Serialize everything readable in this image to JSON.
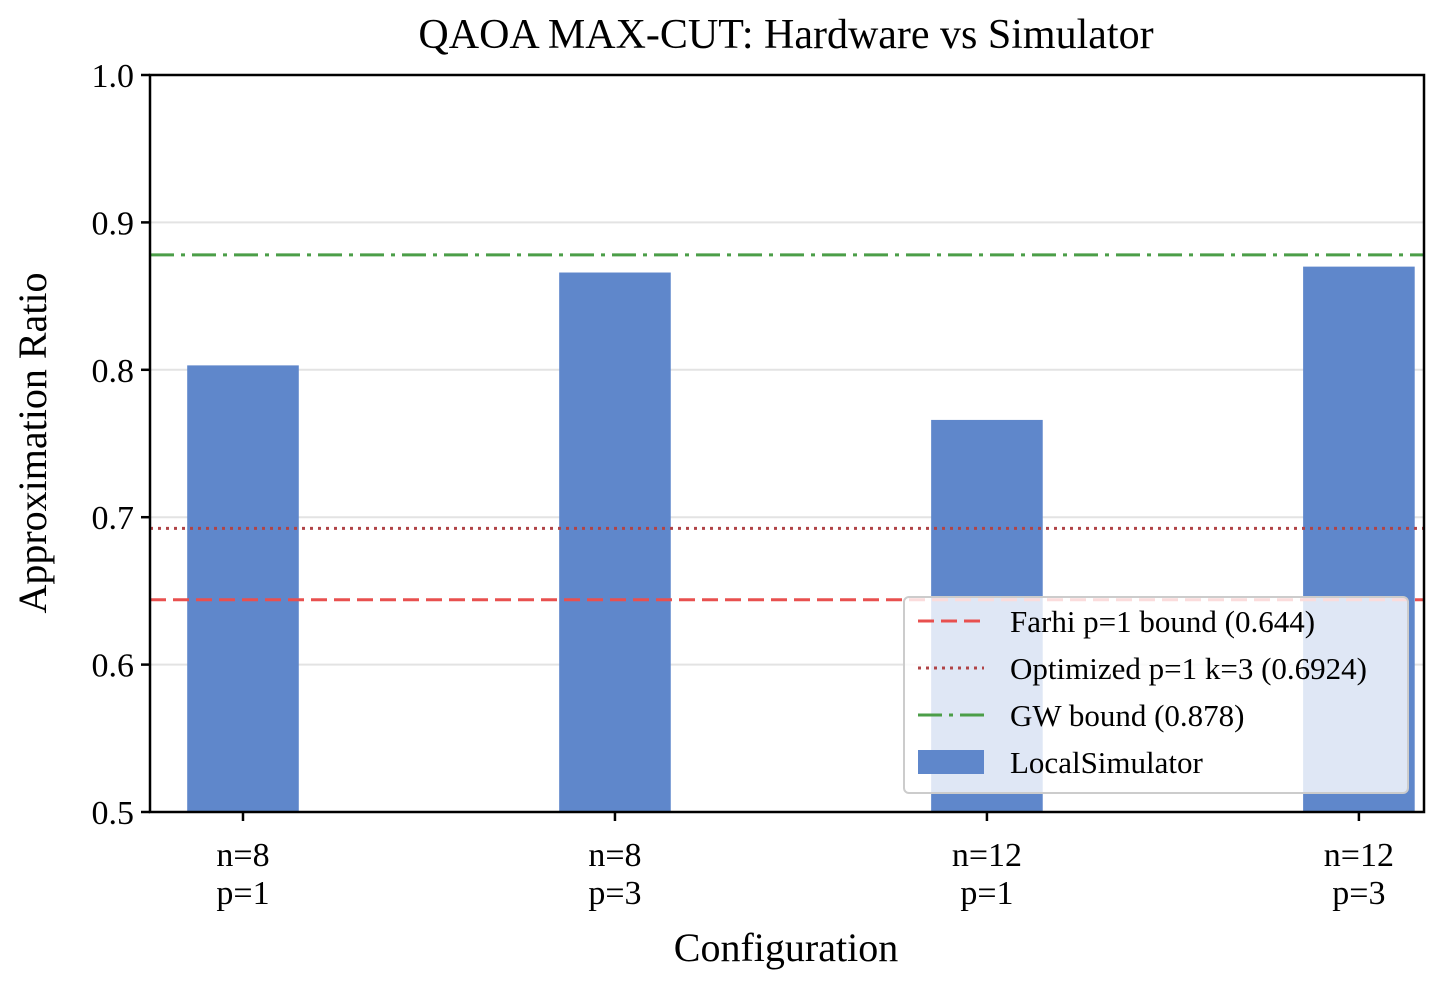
{
  "chart_data": {
    "type": "bar",
    "title": "QAOA MAX-CUT: Hardware vs Simulator",
    "xlabel": "Configuration",
    "ylabel": "Approximation Ratio",
    "ylim": [
      0.5,
      1.0
    ],
    "yticks": [
      "0.5",
      "0.6",
      "0.7",
      "0.8",
      "0.9",
      "1.0"
    ],
    "categories": [
      {
        "line1": "n=8",
        "line2": "p=1"
      },
      {
        "line1": "n=8",
        "line2": "p=3"
      },
      {
        "line1": "n=12",
        "line2": "p=1"
      },
      {
        "line1": "n=12",
        "line2": "p=3"
      }
    ],
    "series": [
      {
        "name": "LocalSimulator",
        "color": "#5f87cb",
        "values": [
          0.803,
          0.866,
          0.766,
          0.87
        ]
      }
    ],
    "reference_lines": [
      {
        "label": "Farhi p=1 bound (0.644)",
        "value": 0.644,
        "color": "#e8504f",
        "style": "dashed"
      },
      {
        "label": "Optimized p=1 k=3 (0.6924)",
        "value": 0.6924,
        "color": "#b04447",
        "style": "dotted"
      },
      {
        "label": "GW bound (0.878)",
        "value": 0.878,
        "color": "#4b9e48",
        "style": "dashdot"
      }
    ],
    "grid": "y",
    "legend": "bottom-right"
  }
}
